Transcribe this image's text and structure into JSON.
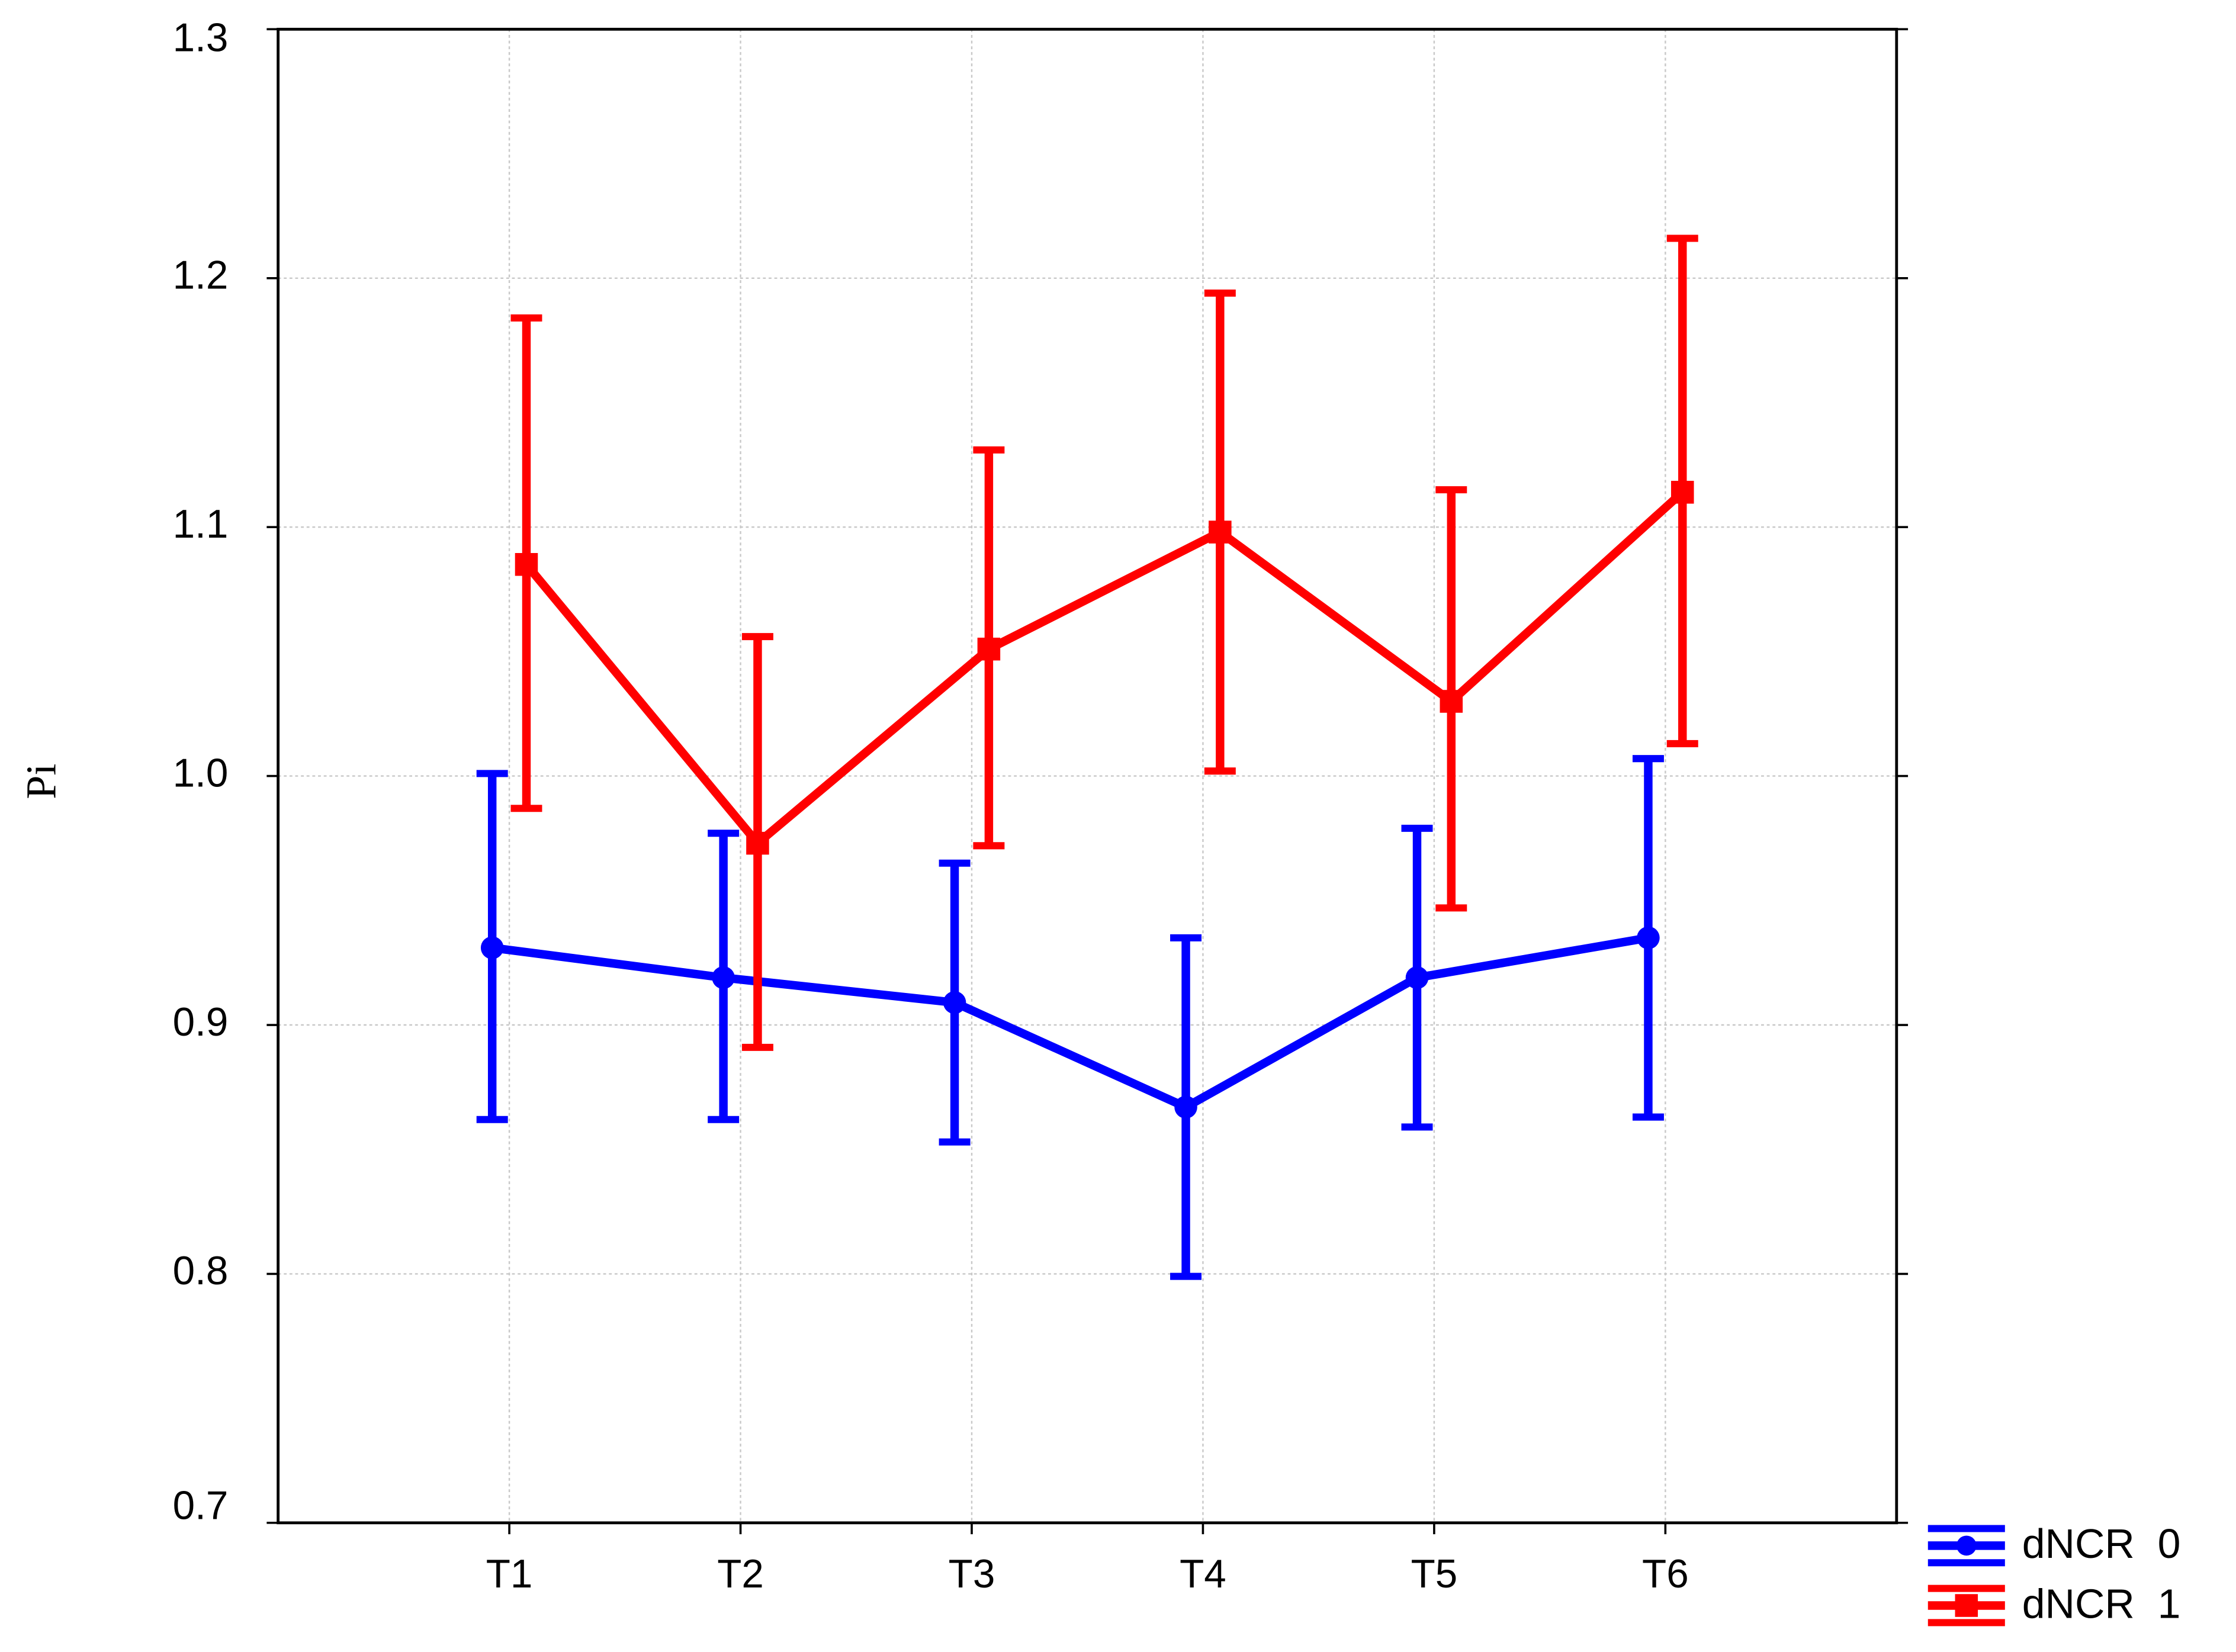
{
  "chart_data": {
    "type": "line",
    "y_label": "Pi",
    "categories": [
      "T1",
      "T2",
      "T3",
      "T4",
      "T5",
      "T6"
    ],
    "ylim": [
      0.7,
      1.3
    ],
    "yticks": [
      0.7,
      0.8,
      0.9,
      {
        "value": 1,
        "label": "1.0"
      },
      1.1,
      1.2,
      1.3
    ],
    "grid": true,
    "series": [
      {
        "name": "dNCR  0",
        "color": "#0000ff",
        "marker": "circle",
        "values": [
          0.931,
          0.919,
          0.909,
          0.867,
          0.919,
          0.935
        ],
        "lower": [
          0.862,
          0.862,
          0.853,
          0.799,
          0.859,
          0.863
        ],
        "upper": [
          1.001,
          0.977,
          0.965,
          0.935,
          0.979,
          1.007
        ]
      },
      {
        "name": "dNCR  1",
        "color": "#ff0000",
        "marker": "square",
        "values": [
          1.085,
          0.973,
          1.051,
          1.098,
          1.03,
          1.114
        ],
        "lower": [
          0.987,
          0.891,
          0.972,
          1.002,
          0.947,
          1.013
        ],
        "upper": [
          1.184,
          1.056,
          1.131,
          1.194,
          1.115,
          1.216
        ]
      }
    ]
  }
}
